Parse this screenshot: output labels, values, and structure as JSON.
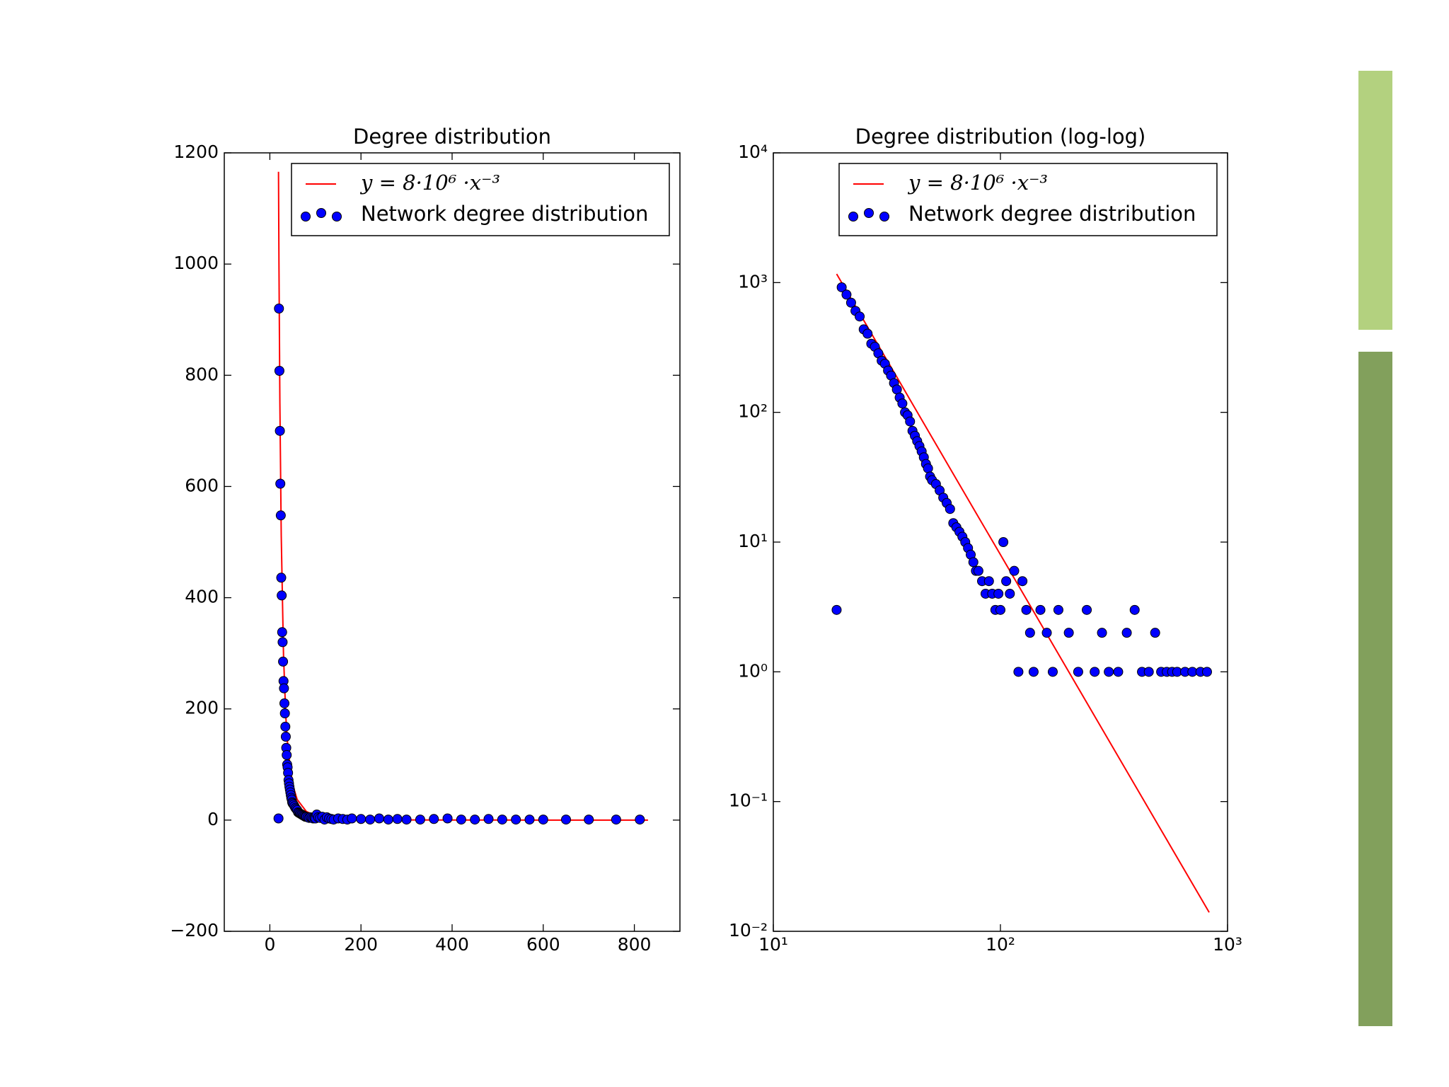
{
  "charts": [
    {
      "type": "scatter",
      "title": "Degree distribution",
      "log_x": false,
      "log_y": false,
      "legend": "upper right",
      "xlim": [
        -100,
        900
      ],
      "ylim": [
        -200,
        1200
      ],
      "xticks": [
        0,
        200,
        400,
        600,
        800
      ],
      "yticks": [
        {
          "value": -200,
          "label": "−200"
        },
        0,
        200,
        400,
        600,
        800,
        1000,
        1200
      ],
      "series": [
        {
          "name": "y = 8·10⁶ ·x⁻³",
          "kind": "line",
          "color": "#ff0000",
          "x": [
            19,
            20,
            22,
            25,
            30,
            35,
            40,
            50,
            60,
            80,
            100,
            150,
            200,
            300,
            500,
            830
          ],
          "values": [
            1166,
            1000,
            751,
            512,
            296,
            187,
            125,
            64,
            37,
            15.6,
            8,
            2.37,
            1,
            0.296,
            0.064,
            0.014
          ]
        },
        {
          "name": "Network degree distribution",
          "kind": "scatter",
          "color": "#0000ff",
          "x": [
            19,
            20,
            21,
            22,
            23,
            24,
            25,
            26,
            27,
            28,
            29,
            30,
            31,
            32,
            33,
            34,
            35,
            36,
            37,
            38,
            39,
            40,
            41,
            42,
            43,
            44,
            45,
            46,
            47,
            48,
            49,
            50,
            52,
            54,
            56,
            58,
            60,
            62,
            64,
            66,
            68,
            70,
            72,
            74,
            76,
            78,
            80,
            83,
            86,
            89,
            92,
            95,
            98,
            100,
            103,
            106,
            110,
            115,
            120,
            125,
            130,
            135,
            140,
            150,
            160,
            170,
            180,
            200,
            220,
            240,
            260,
            280,
            300,
            330,
            360,
            390,
            420,
            450,
            480,
            510,
            540,
            570,
            600,
            650,
            700,
            760,
            812
          ],
          "values": [
            3,
            920,
            808,
            700,
            605,
            548,
            436,
            404,
            338,
            320,
            285,
            250,
            237,
            210,
            192,
            168,
            150,
            130,
            117,
            100,
            95,
            85,
            72,
            66,
            60,
            55,
            50,
            45,
            40,
            37,
            32,
            30,
            28,
            25,
            22,
            20,
            18,
            14,
            13,
            12,
            11,
            10,
            9,
            8,
            7,
            6,
            6,
            5,
            4,
            5,
            4,
            3,
            4,
            3,
            10,
            5,
            4,
            6,
            1,
            5,
            3,
            2,
            1,
            3,
            2,
            1,
            3,
            2,
            1,
            3,
            1,
            2,
            1,
            1,
            2,
            3,
            1,
            1,
            2,
            1,
            1,
            1,
            1,
            1,
            1,
            1,
            1
          ]
        }
      ]
    },
    {
      "type": "scatter",
      "title": "Degree distribution (log-log)",
      "log_x": true,
      "log_y": true,
      "legend": "upper right",
      "xlim": [
        10,
        1000
      ],
      "ylim": [
        0.01,
        10000
      ],
      "xticks": [
        {
          "value": 10,
          "label": "10¹"
        },
        {
          "value": 100,
          "label": "10²"
        },
        {
          "value": 1000,
          "label": "10³"
        }
      ],
      "yticks": [
        {
          "value": 0.01,
          "label": "10⁻²"
        },
        {
          "value": 0.1,
          "label": "10⁻¹"
        },
        {
          "value": 1,
          "label": "10⁰"
        },
        {
          "value": 10,
          "label": "10¹"
        },
        {
          "value": 100,
          "label": "10²"
        },
        {
          "value": 1000,
          "label": "10³"
        },
        {
          "value": 10000,
          "label": "10⁴"
        }
      ],
      "series": [
        {
          "name": "y = 8·10⁶ ·x⁻³",
          "kind": "line",
          "color": "#ff0000",
          "x": [
            19,
            20,
            22,
            25,
            30,
            35,
            40,
            50,
            60,
            80,
            100,
            150,
            200,
            300,
            500,
            830
          ],
          "values": [
            1166,
            1000,
            751,
            512,
            296,
            187,
            125,
            64,
            37,
            15.6,
            8,
            2.37,
            1,
            0.296,
            0.064,
            0.014
          ]
        },
        {
          "name": "Network degree distribution",
          "kind": "scatter",
          "color": "#0000ff",
          "x": [
            19,
            20,
            21,
            22,
            23,
            24,
            25,
            26,
            27,
            28,
            29,
            30,
            31,
            32,
            33,
            34,
            35,
            36,
            37,
            38,
            39,
            40,
            41,
            42,
            43,
            44,
            45,
            46,
            47,
            48,
            49,
            50,
            52,
            54,
            56,
            58,
            60,
            62,
            64,
            66,
            68,
            70,
            72,
            74,
            76,
            78,
            80,
            83,
            86,
            89,
            92,
            95,
            98,
            100,
            103,
            106,
            110,
            115,
            120,
            125,
            130,
            135,
            140,
            150,
            160,
            170,
            180,
            200,
            220,
            240,
            260,
            280,
            300,
            330,
            360,
            390,
            420,
            450,
            480,
            510,
            540,
            570,
            600,
            650,
            700,
            760,
            812
          ],
          "values": [
            3,
            920,
            808,
            700,
            605,
            548,
            436,
            404,
            338,
            320,
            285,
            250,
            237,
            210,
            192,
            168,
            150,
            130,
            117,
            100,
            95,
            85,
            72,
            66,
            60,
            55,
            50,
            45,
            40,
            37,
            32,
            30,
            28,
            25,
            22,
            20,
            18,
            14,
            13,
            12,
            11,
            10,
            9,
            8,
            7,
            6,
            6,
            5,
            4,
            5,
            4,
            3,
            4,
            3,
            10,
            5,
            4,
            6,
            1,
            5,
            3,
            2,
            1,
            3,
            2,
            1,
            3,
            2,
            1,
            3,
            1,
            2,
            1,
            1,
            2,
            3,
            1,
            1,
            2,
            1,
            1,
            1,
            1,
            1,
            1,
            1,
            1
          ]
        }
      ]
    }
  ]
}
